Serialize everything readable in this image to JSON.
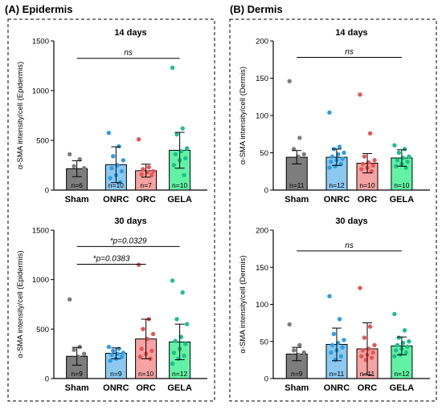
{
  "figure": {
    "panel_a_title": "(A) Epidermis",
    "panel_b_title": "(B) Dermis"
  },
  "colors": {
    "Sham": {
      "bar": "#7d7d7d",
      "dot": "#7d7d7d"
    },
    "ONRC": {
      "bar": "#8cc8f0",
      "dot": "#2e9ee6"
    },
    "ORC": {
      "bar": "#f5a3a3",
      "dot": "#e85555"
    },
    "GELA": {
      "bar": "#63f2a5",
      "dot": "#1cc08c"
    }
  },
  "chart_data": [
    {
      "id": "epi14",
      "type": "bar",
      "title": "14 days",
      "ylabel": "α-SMA intensity/cell (Epidermis)",
      "ylim": [
        0,
        1500
      ],
      "yticks": [
        0,
        500,
        1000,
        1500
      ],
      "categories": [
        "Sham",
        "ONRC",
        "ORC",
        "GELA"
      ],
      "values": [
        215,
        255,
        195,
        400
      ],
      "errors": [
        80,
        180,
        65,
        180
      ],
      "n_labels": [
        "n=6",
        "n=10",
        "n=7",
        "n=10"
      ],
      "points": [
        [
          360,
          310,
          240,
          220,
          180,
          170
        ],
        [
          575,
          440,
          340,
          300,
          250,
          220,
          190,
          150,
          120,
          80
        ],
        [
          510,
          230,
          210,
          190,
          180,
          160,
          150
        ],
        [
          1230,
          620,
          560,
          420,
          390,
          360,
          320,
          300,
          250,
          150
        ]
      ],
      "annotations": [
        {
          "text": "ns",
          "from": 0,
          "to": 3,
          "y": 1325
        }
      ]
    },
    {
      "id": "epi30",
      "type": "bar",
      "title": "30 days",
      "ylabel": "α-SMA intensity/cell (Epidermis)",
      "ylim": [
        0,
        1500
      ],
      "yticks": [
        0,
        500,
        1000,
        1500
      ],
      "categories": [
        "Sham",
        "ONRC",
        "ORC",
        "GELA"
      ],
      "values": [
        225,
        255,
        400,
        370
      ],
      "errors": [
        90,
        55,
        200,
        180
      ],
      "n_labels": [
        "n=9",
        "n=9",
        "n=10",
        "n=12"
      ],
      "points": [
        [
          800,
          320,
          290,
          250,
          220,
          200,
          180,
          150,
          120
        ],
        [
          320,
          300,
          280,
          260,
          250,
          240,
          220,
          200,
          180
        ],
        [
          1150,
          600,
          500,
          450,
          400,
          300,
          280,
          250,
          220,
          200
        ],
        [
          990,
          870,
          600,
          550,
          420,
          380,
          350,
          300,
          260,
          230,
          200,
          150
        ]
      ],
      "annotations": [
        {
          "text": "*p=0.0329",
          "from": 0,
          "to": 3,
          "y": 1335
        },
        {
          "text": "*p=0.0383",
          "from": 0,
          "to": 2,
          "y": 1155
        }
      ]
    },
    {
      "id": "der14",
      "type": "bar",
      "title": "14 days",
      "ylabel": "α-SMA intensity/cell (Dermis)",
      "ylim": [
        0,
        200
      ],
      "yticks": [
        0,
        50,
        100,
        150,
        200
      ],
      "categories": [
        "Sham",
        "ONRC",
        "ORC",
        "GELA"
      ],
      "values": [
        44,
        44,
        36,
        43
      ],
      "errors": [
        9,
        11,
        13,
        11
      ],
      "n_labels": [
        "n=11",
        "n=12",
        "n=10",
        "n=10"
      ],
      "points": [
        [
          146,
          70,
          55,
          48,
          45,
          40,
          38,
          35,
          32,
          30,
          28
        ],
        [
          104,
          58,
          55,
          50,
          48,
          45,
          42,
          40,
          38,
          35,
          32,
          30
        ],
        [
          128,
          76,
          45,
          40,
          37,
          35,
          33,
          30,
          28,
          25
        ],
        [
          60,
          55,
          50,
          45,
          43,
          40,
          38,
          35,
          32,
          30
        ]
      ],
      "annotations": [
        {
          "text": "ns",
          "from": 0,
          "to": 3,
          "y": 178
        }
      ]
    },
    {
      "id": "der30",
      "type": "bar",
      "title": "30 days",
      "ylabel": "α-SMA intensity/cell (Dermis)",
      "ylim": [
        0,
        200
      ],
      "yticks": [
        0,
        50,
        100,
        150,
        200
      ],
      "categories": [
        "Sham",
        "ONRC",
        "ORC",
        "GELA"
      ],
      "values": [
        33,
        46,
        40,
        44
      ],
      "errors": [
        9,
        22,
        35,
        12
      ],
      "n_labels": [
        "n=9",
        "n=11",
        "n=11",
        "n=12"
      ],
      "points": [
        [
          73,
          45,
          38,
          35,
          32,
          30,
          28,
          25,
          22
        ],
        [
          111,
          80,
          60,
          52,
          48,
          45,
          42,
          38,
          35,
          30,
          25
        ],
        [
          122,
          70,
          55,
          45,
          40,
          38,
          35,
          32,
          30,
          28,
          25
        ],
        [
          87,
          65,
          55,
          50,
          48,
          45,
          43,
          40,
          38,
          35,
          32,
          30
        ]
      ],
      "annotations": [
        {
          "text": "ns",
          "from": 0,
          "to": 3,
          "y": 172
        }
      ]
    }
  ]
}
